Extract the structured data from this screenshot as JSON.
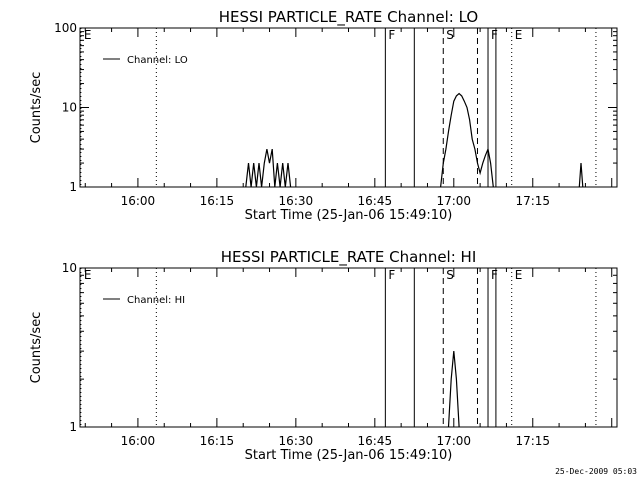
{
  "timestamp": "25-Dec-2009 05:03",
  "chart_data": [
    {
      "type": "line",
      "title": "HESSI PARTICLE_RATE Channel: LO",
      "xlabel": "Start Time (25-Jan-06 15:49:10)",
      "ylabel": "Counts/sec",
      "y_scale": "log",
      "xlim": [
        "15:49",
        "17:31"
      ],
      "ylim": [
        1,
        100
      ],
      "x_ticks": [
        "16:00",
        "16:15",
        "16:30",
        "16:45",
        "17:00",
        "17:15"
      ],
      "y_ticks": [
        "1",
        "10",
        "100"
      ],
      "legend": "Channel: LO",
      "legend_position": "top-left",
      "series": [
        {
          "name": "Channel: LO",
          "color": "#000000",
          "points": [
            [
              "16:20:30",
              1
            ],
            [
              "16:21:00",
              2
            ],
            [
              "16:21:30",
              1
            ],
            [
              "16:22:00",
              2
            ],
            [
              "16:22:30",
              1
            ],
            [
              "16:23:00",
              2
            ],
            [
              "16:23:30",
              1
            ],
            [
              "16:24:00",
              2
            ],
            [
              "16:24:30",
              3
            ],
            [
              "16:25:00",
              2
            ],
            [
              "16:25:30",
              3
            ],
            [
              "16:26:00",
              1
            ],
            [
              "16:26:30",
              2
            ],
            [
              "16:27:00",
              1
            ],
            [
              "16:27:30",
              2
            ],
            [
              "16:28:00",
              1
            ],
            [
              "16:28:30",
              2
            ],
            [
              "16:29:00",
              1
            ],
            [
              "16:57:30",
              1
            ],
            [
              "16:58:00",
              2
            ],
            [
              "16:58:30",
              3
            ],
            [
              "16:59:00",
              5
            ],
            [
              "16:59:30",
              8
            ],
            [
              "17:00:00",
              12
            ],
            [
              "17:00:30",
              14
            ],
            [
              "17:01:00",
              15
            ],
            [
              "17:01:30",
              14
            ],
            [
              "17:02:00",
              12
            ],
            [
              "17:02:30",
              10
            ],
            [
              "17:03:00",
              7
            ],
            [
              "17:03:30",
              4
            ],
            [
              "17:04:00",
              3
            ],
            [
              "17:04:30",
              2
            ],
            [
              "17:05:00",
              1.5
            ],
            [
              "17:05:30",
              2
            ],
            [
              "17:06:00",
              2.5
            ],
            [
              "17:06:30",
              3
            ],
            [
              "17:07:00",
              2
            ],
            [
              "17:07:30",
              1
            ],
            [
              "17:23:50",
              1
            ],
            [
              "17:24:10",
              2
            ],
            [
              "17:24:30",
              1
            ]
          ]
        }
      ],
      "markers": [
        {
          "label": "E",
          "time": "15:49:10",
          "style": "dotted"
        },
        {
          "label": "",
          "time": "16:03:30",
          "style": "dotted"
        },
        {
          "label": "F",
          "time": "16:47:00",
          "style": "solid"
        },
        {
          "label": "",
          "time": "16:52:30",
          "style": "solid"
        },
        {
          "label": "S",
          "time": "16:58:00",
          "style": "dashed"
        },
        {
          "label": "",
          "time": "17:04:30",
          "style": "dashed"
        },
        {
          "label": "F",
          "time": "17:06:30",
          "style": "solid"
        },
        {
          "label": "",
          "time": "17:08:00",
          "style": "solid"
        },
        {
          "label": "E",
          "time": "17:11:00",
          "style": "dotted"
        },
        {
          "label": "",
          "time": "17:27:00",
          "style": "dotted"
        }
      ]
    },
    {
      "type": "line",
      "title": "HESSI PARTICLE_RATE Channel: HI",
      "xlabel": "Start Time (25-Jan-06 15:49:10)",
      "ylabel": "Counts/sec",
      "y_scale": "log",
      "xlim": [
        "15:49",
        "17:31"
      ],
      "ylim": [
        1,
        10
      ],
      "x_ticks": [
        "16:00",
        "16:15",
        "16:30",
        "16:45",
        "17:00",
        "17:15"
      ],
      "y_ticks": [
        "1",
        "10"
      ],
      "legend": "Channel: HI",
      "legend_position": "top-left",
      "series": [
        {
          "name": "Channel: HI",
          "color": "#000000",
          "points": [
            [
              "16:59:00",
              1
            ],
            [
              "16:59:30",
              2
            ],
            [
              "17:00:00",
              3
            ],
            [
              "17:00:30",
              2
            ],
            [
              "17:01:00",
              1
            ]
          ]
        }
      ],
      "markers": [
        {
          "label": "E",
          "time": "15:49:10",
          "style": "dotted"
        },
        {
          "label": "",
          "time": "16:03:30",
          "style": "dotted"
        },
        {
          "label": "F",
          "time": "16:47:00",
          "style": "solid"
        },
        {
          "label": "",
          "time": "16:52:30",
          "style": "solid"
        },
        {
          "label": "S",
          "time": "16:58:00",
          "style": "dashed"
        },
        {
          "label": "",
          "time": "17:04:30",
          "style": "dashed"
        },
        {
          "label": "F",
          "time": "17:06:30",
          "style": "solid"
        },
        {
          "label": "",
          "time": "17:08:00",
          "style": "solid"
        },
        {
          "label": "E",
          "time": "17:11:00",
          "style": "dotted"
        },
        {
          "label": "",
          "time": "17:27:00",
          "style": "dotted"
        }
      ]
    }
  ]
}
